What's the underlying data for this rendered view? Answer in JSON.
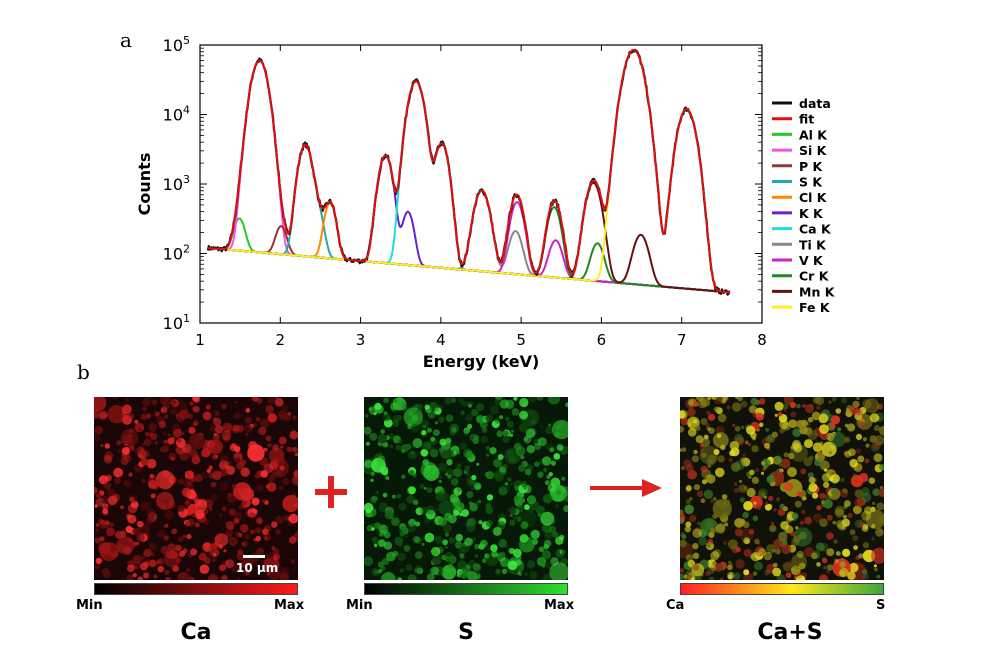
{
  "panel_a_label": "a",
  "panel_b_label": "b",
  "chart_data": {
    "type": "line",
    "xlabel": "Energy (keV)",
    "ylabel": "Counts",
    "xlim": [
      1,
      8
    ],
    "ylim": [
      10,
      100000
    ],
    "yscale": "log",
    "x_ticks": [
      1,
      2,
      3,
      4,
      5,
      6,
      7,
      8
    ],
    "y_ticks": [
      {
        "value": 10,
        "base": "10",
        "exp": "1"
      },
      {
        "value": 100,
        "base": "10",
        "exp": "2"
      },
      {
        "value": 1000,
        "base": "10",
        "exp": "3"
      },
      {
        "value": 10000,
        "base": "10",
        "exp": "4"
      },
      {
        "value": 100000,
        "base": "10",
        "exp": "5"
      }
    ],
    "grid": false,
    "legend_position": "right",
    "background": 120,
    "series": [
      {
        "name": "data",
        "color": "#111111",
        "peaks": "sum"
      },
      {
        "name": "fit",
        "color": "#e01010",
        "peaks": "sum"
      },
      {
        "name": "Al K",
        "color": "#22cc22",
        "peaks": [
          [
            1.49,
            210,
            0.06
          ]
        ]
      },
      {
        "name": "Si K",
        "color": "#ee55ee",
        "peaks": [
          [
            1.74,
            60000,
            0.085
          ]
        ]
      },
      {
        "name": "P K",
        "color": "#993333",
        "peaks": [
          [
            2.01,
            150,
            0.06
          ]
        ]
      },
      {
        "name": "S K",
        "color": "#22aaaa",
        "peaks": [
          [
            2.31,
            3600,
            0.07
          ],
          [
            2.47,
            300,
            0.06
          ]
        ]
      },
      {
        "name": "Cl K",
        "color": "#ff8800",
        "peaks": [
          [
            2.62,
            460,
            0.06
          ]
        ]
      },
      {
        "name": "K K",
        "color": "#6622cc",
        "peaks": [
          [
            3.31,
            2500,
            0.07
          ],
          [
            3.59,
            330,
            0.06
          ]
        ]
      },
      {
        "name": "Ca K",
        "color": "#22dddd",
        "peaks": [
          [
            3.69,
            30000,
            0.08
          ],
          [
            4.01,
            3800,
            0.07
          ]
        ]
      },
      {
        "name": "Ti K",
        "color": "#888888",
        "peaks": [
          [
            4.51,
            750,
            0.08
          ],
          [
            4.93,
            160,
            0.07
          ]
        ]
      },
      {
        "name": "V K",
        "color": "#cc22cc",
        "peaks": [
          [
            4.95,
            500,
            0.07
          ],
          [
            5.43,
            110,
            0.07
          ]
        ]
      },
      {
        "name": "Cr K",
        "color": "#228822",
        "peaks": [
          [
            5.41,
            420,
            0.07
          ],
          [
            5.95,
            100,
            0.07
          ]
        ]
      },
      {
        "name": "Mn K",
        "color": "#661111",
        "peaks": [
          [
            5.9,
            1000,
            0.08
          ],
          [
            6.49,
            150,
            0.08
          ]
        ]
      },
      {
        "name": "Fe K",
        "color": "#ffee22",
        "peaks": [
          [
            6.4,
            85000,
            0.1
          ],
          [
            7.06,
            12000,
            0.09
          ]
        ]
      }
    ]
  },
  "maps": {
    "ca": {
      "title": "Ca",
      "min_label": "Min",
      "max_label": "Max",
      "color": "#ff2020"
    },
    "s": {
      "title": "S",
      "min_label": "Min",
      "max_label": "Max",
      "color": "#22dd22"
    },
    "casum": {
      "title": "Ca+S",
      "left_label": "Ca",
      "right_label": "S"
    },
    "scale_bar_label": "10 μm",
    "operator_plus": "+",
    "arrow_color": "#dd2222"
  }
}
